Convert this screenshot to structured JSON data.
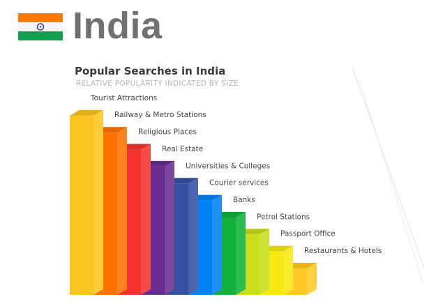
{
  "header": {
    "country": "India",
    "flag_icon": "india-flag-icon",
    "flag_colors": [
      "#ff7a00",
      "#f5f5f5",
      "#12a150",
      "#3a3f9b"
    ]
  },
  "chart_data": {
    "type": "bar",
    "style": "3d-stepped",
    "title": "Popular Searches in India",
    "subtitle": "RELATIVE POPULARITY INDICATED BY SIZE",
    "categories": [
      "Tourist Attractions",
      "Railway & Metro Stations",
      "Religious Places",
      "Real Estate",
      "Universities & Colleges",
      "Courier services",
      "Banks",
      "Petrol Stations",
      "Passport Office",
      "Restaurants & Hotels"
    ],
    "values": [
      10,
      9,
      8,
      7,
      6,
      5,
      4,
      3,
      2,
      1
    ],
    "colors": [
      "#fcc41f",
      "#fe7200",
      "#f4342c",
      "#6a2c91",
      "#3650a3",
      "#0082f4",
      "#12b13b",
      "#cadd1a",
      "#f7e813",
      "#ffca25"
    ],
    "grid": false,
    "legend": "none"
  }
}
